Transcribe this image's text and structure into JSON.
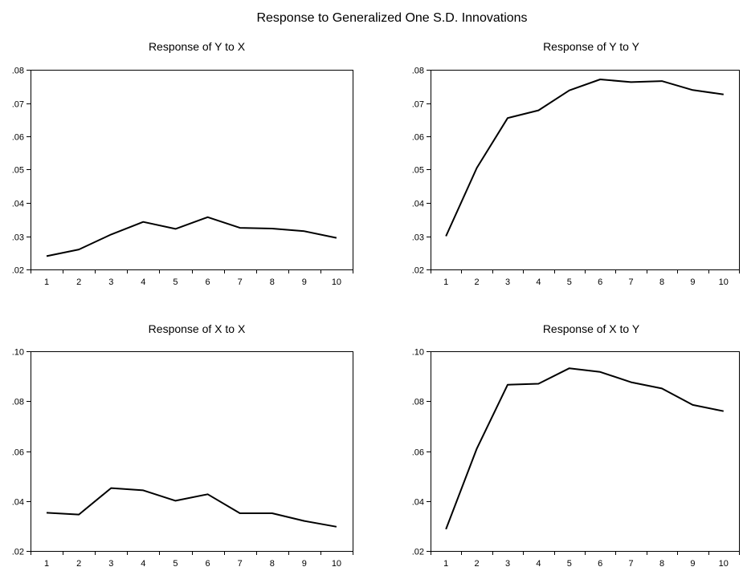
{
  "figure_title": "Response to Generalized One S.D. Innovations",
  "chart_data": [
    {
      "type": "line",
      "title": "Response of Y to X",
      "x": [
        1,
        2,
        3,
        4,
        5,
        6,
        7,
        8,
        9,
        10
      ],
      "x_tick_labels": [
        "1",
        "2",
        "3",
        "4",
        "5",
        "6",
        "7",
        "8",
        "9",
        "10"
      ],
      "values": [
        0.024,
        0.026,
        0.0305,
        0.0343,
        0.0322,
        0.0357,
        0.0325,
        0.0323,
        0.0315,
        0.0295
      ],
      "ylim": [
        0.02,
        0.08
      ],
      "y_ticks": [
        0.02,
        0.03,
        0.04,
        0.05,
        0.06,
        0.07,
        0.08
      ],
      "y_tick_labels": [
        ".02",
        ".03",
        ".04",
        ".05",
        ".06",
        ".07",
        ".08"
      ],
      "grid": false,
      "line_color": "#000000"
    },
    {
      "type": "line",
      "title": "Response of Y to Y",
      "x": [
        1,
        2,
        3,
        4,
        5,
        6,
        7,
        8,
        9,
        10
      ],
      "x_tick_labels": [
        "1",
        "2",
        "3",
        "4",
        "5",
        "6",
        "7",
        "8",
        "9",
        "10"
      ],
      "values": [
        0.03,
        0.0505,
        0.0655,
        0.0678,
        0.0738,
        0.0771,
        0.0763,
        0.0766,
        0.0739,
        0.0726
      ],
      "ylim": [
        0.02,
        0.08
      ],
      "y_ticks": [
        0.02,
        0.03,
        0.04,
        0.05,
        0.06,
        0.07,
        0.08
      ],
      "y_tick_labels": [
        ".02",
        ".03",
        ".04",
        ".05",
        ".06",
        ".07",
        ".08"
      ],
      "grid": false,
      "line_color": "#000000"
    },
    {
      "type": "line",
      "title": "Response of X to X",
      "x": [
        1,
        2,
        3,
        4,
        5,
        6,
        7,
        8,
        9,
        10
      ],
      "x_tick_labels": [
        "1",
        "2",
        "3",
        "4",
        "5",
        "6",
        "7",
        "8",
        "9",
        "10"
      ],
      "values": [
        0.0353,
        0.0346,
        0.0452,
        0.0443,
        0.0401,
        0.0427,
        0.0351,
        0.0351,
        0.032,
        0.0297
      ],
      "ylim": [
        0.02,
        0.1
      ],
      "y_ticks": [
        0.02,
        0.04,
        0.06,
        0.08,
        0.1
      ],
      "y_tick_labels": [
        ".02",
        ".04",
        ".06",
        ".08",
        ".10"
      ],
      "grid": false,
      "line_color": "#000000"
    },
    {
      "type": "line",
      "title": "Response of X to Y",
      "x": [
        1,
        2,
        3,
        4,
        5,
        6,
        7,
        8,
        9,
        10
      ],
      "x_tick_labels": [
        "1",
        "2",
        "3",
        "4",
        "5",
        "6",
        "7",
        "8",
        "9",
        "10"
      ],
      "values": [
        0.0287,
        0.061,
        0.0866,
        0.087,
        0.0932,
        0.0917,
        0.0876,
        0.0851,
        0.0785,
        0.076
      ],
      "ylim": [
        0.02,
        0.1
      ],
      "y_ticks": [
        0.02,
        0.04,
        0.06,
        0.08,
        0.1
      ],
      "y_tick_labels": [
        ".02",
        ".04",
        ".06",
        ".08",
        ".10"
      ],
      "grid": false,
      "line_color": "#000000"
    }
  ]
}
